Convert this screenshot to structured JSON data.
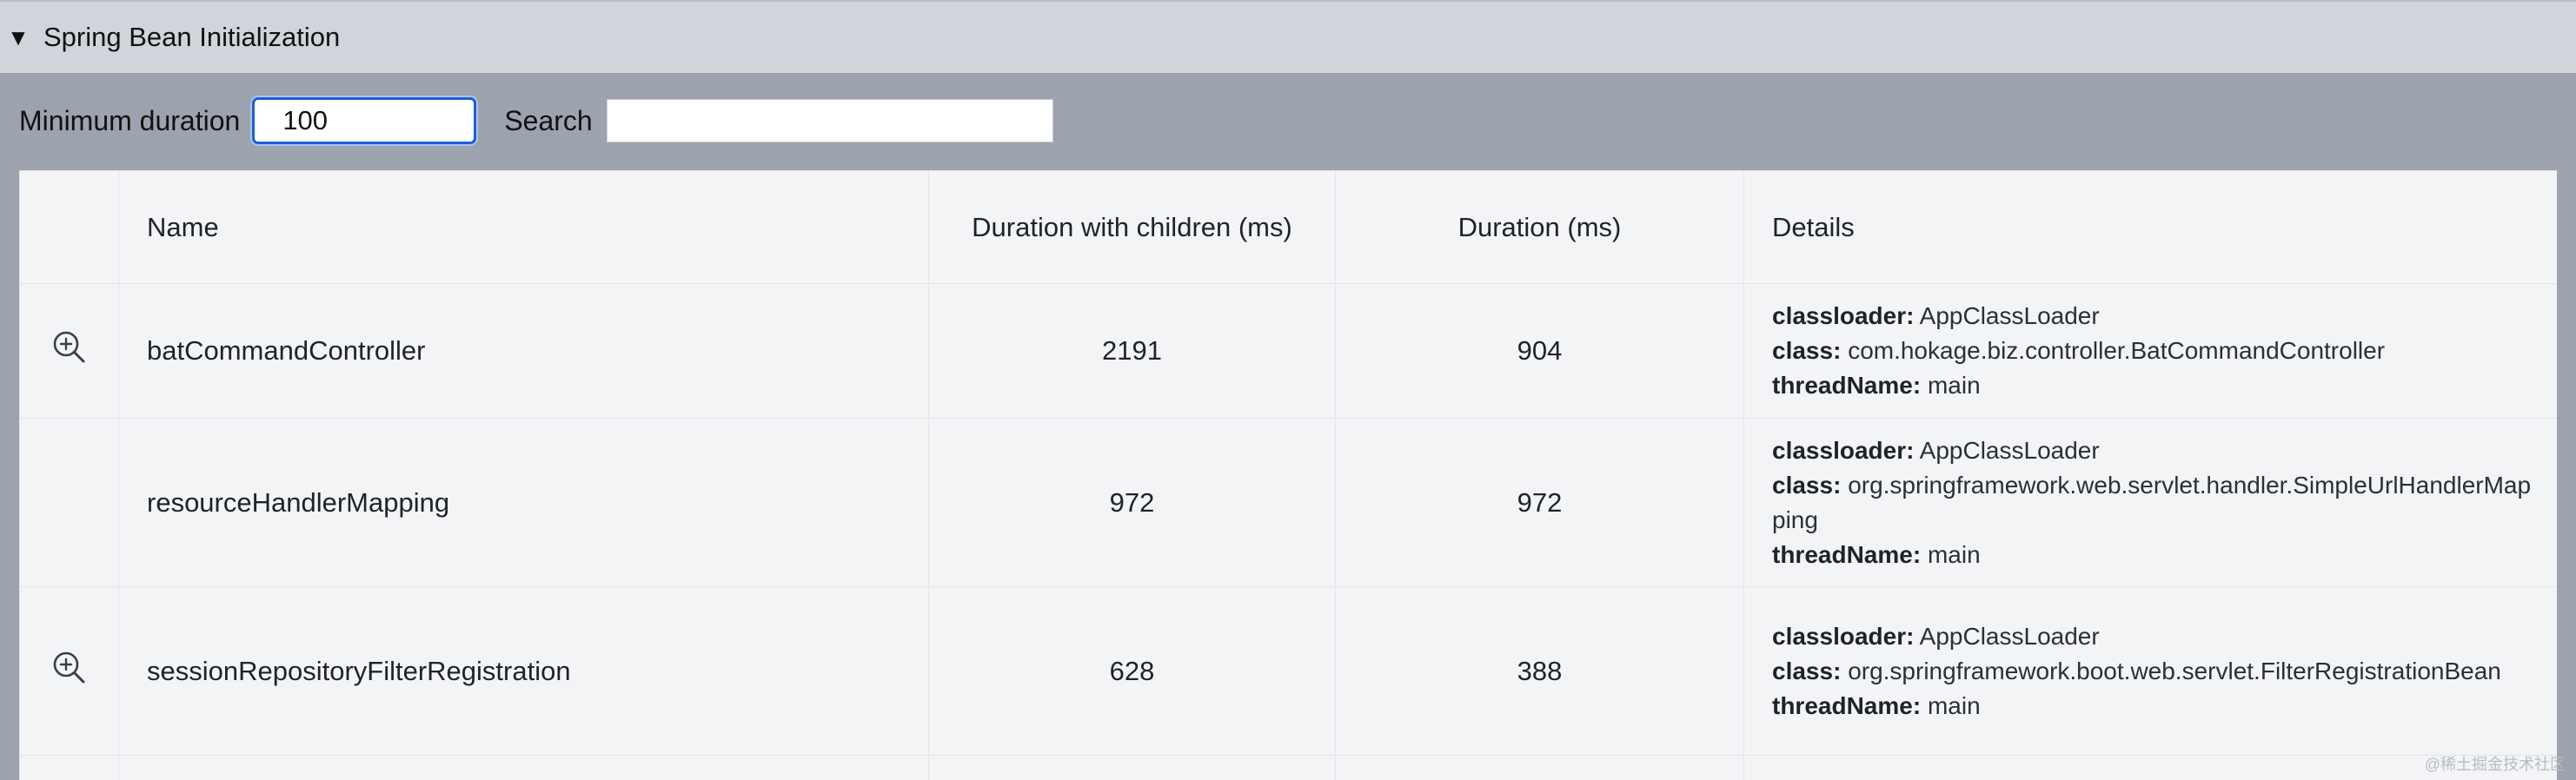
{
  "section": {
    "toggle_glyph": "▼",
    "title": "Spring Bean Initialization"
  },
  "filters": {
    "min_duration_label": "Minimum duration",
    "min_duration_value": "100",
    "search_label": "Search",
    "search_value": ""
  },
  "table": {
    "headers": {
      "name": "Name",
      "duration_with_children": "Duration with children (ms)",
      "duration": "Duration (ms)",
      "details": "Details"
    },
    "detail_keys": {
      "classloader": "classloader:",
      "class": "class:",
      "thread": "threadName:"
    },
    "rows": [
      {
        "has_zoom": true,
        "name": "batCommandController",
        "duration_with_children": "2191",
        "duration": "904",
        "classloader": "AppClassLoader",
        "class": "com.hokage.biz.controller.BatCommandController",
        "thread": "main"
      },
      {
        "has_zoom": false,
        "name": "resourceHandlerMapping",
        "duration_with_children": "972",
        "duration": "972",
        "classloader": "AppClassLoader",
        "class": "org.springframework.web.servlet.handler.SimpleUrlHandlerMapping",
        "thread": "main"
      },
      {
        "has_zoom": true,
        "name": "sessionRepositoryFilterRegistration",
        "duration_with_children": "628",
        "duration": "388",
        "classloader": "AppClassLoader",
        "class": "org.springframework.boot.web.servlet.FilterRegistrationBean",
        "thread": "main"
      }
    ]
  },
  "watermark": "@稀土掘金技术社区",
  "colors": {
    "header_bg": "#d1d5db",
    "page_bg": "#9ca3ae",
    "table_bg": "#f3f4f6",
    "focus_border": "#1e5fd0"
  }
}
